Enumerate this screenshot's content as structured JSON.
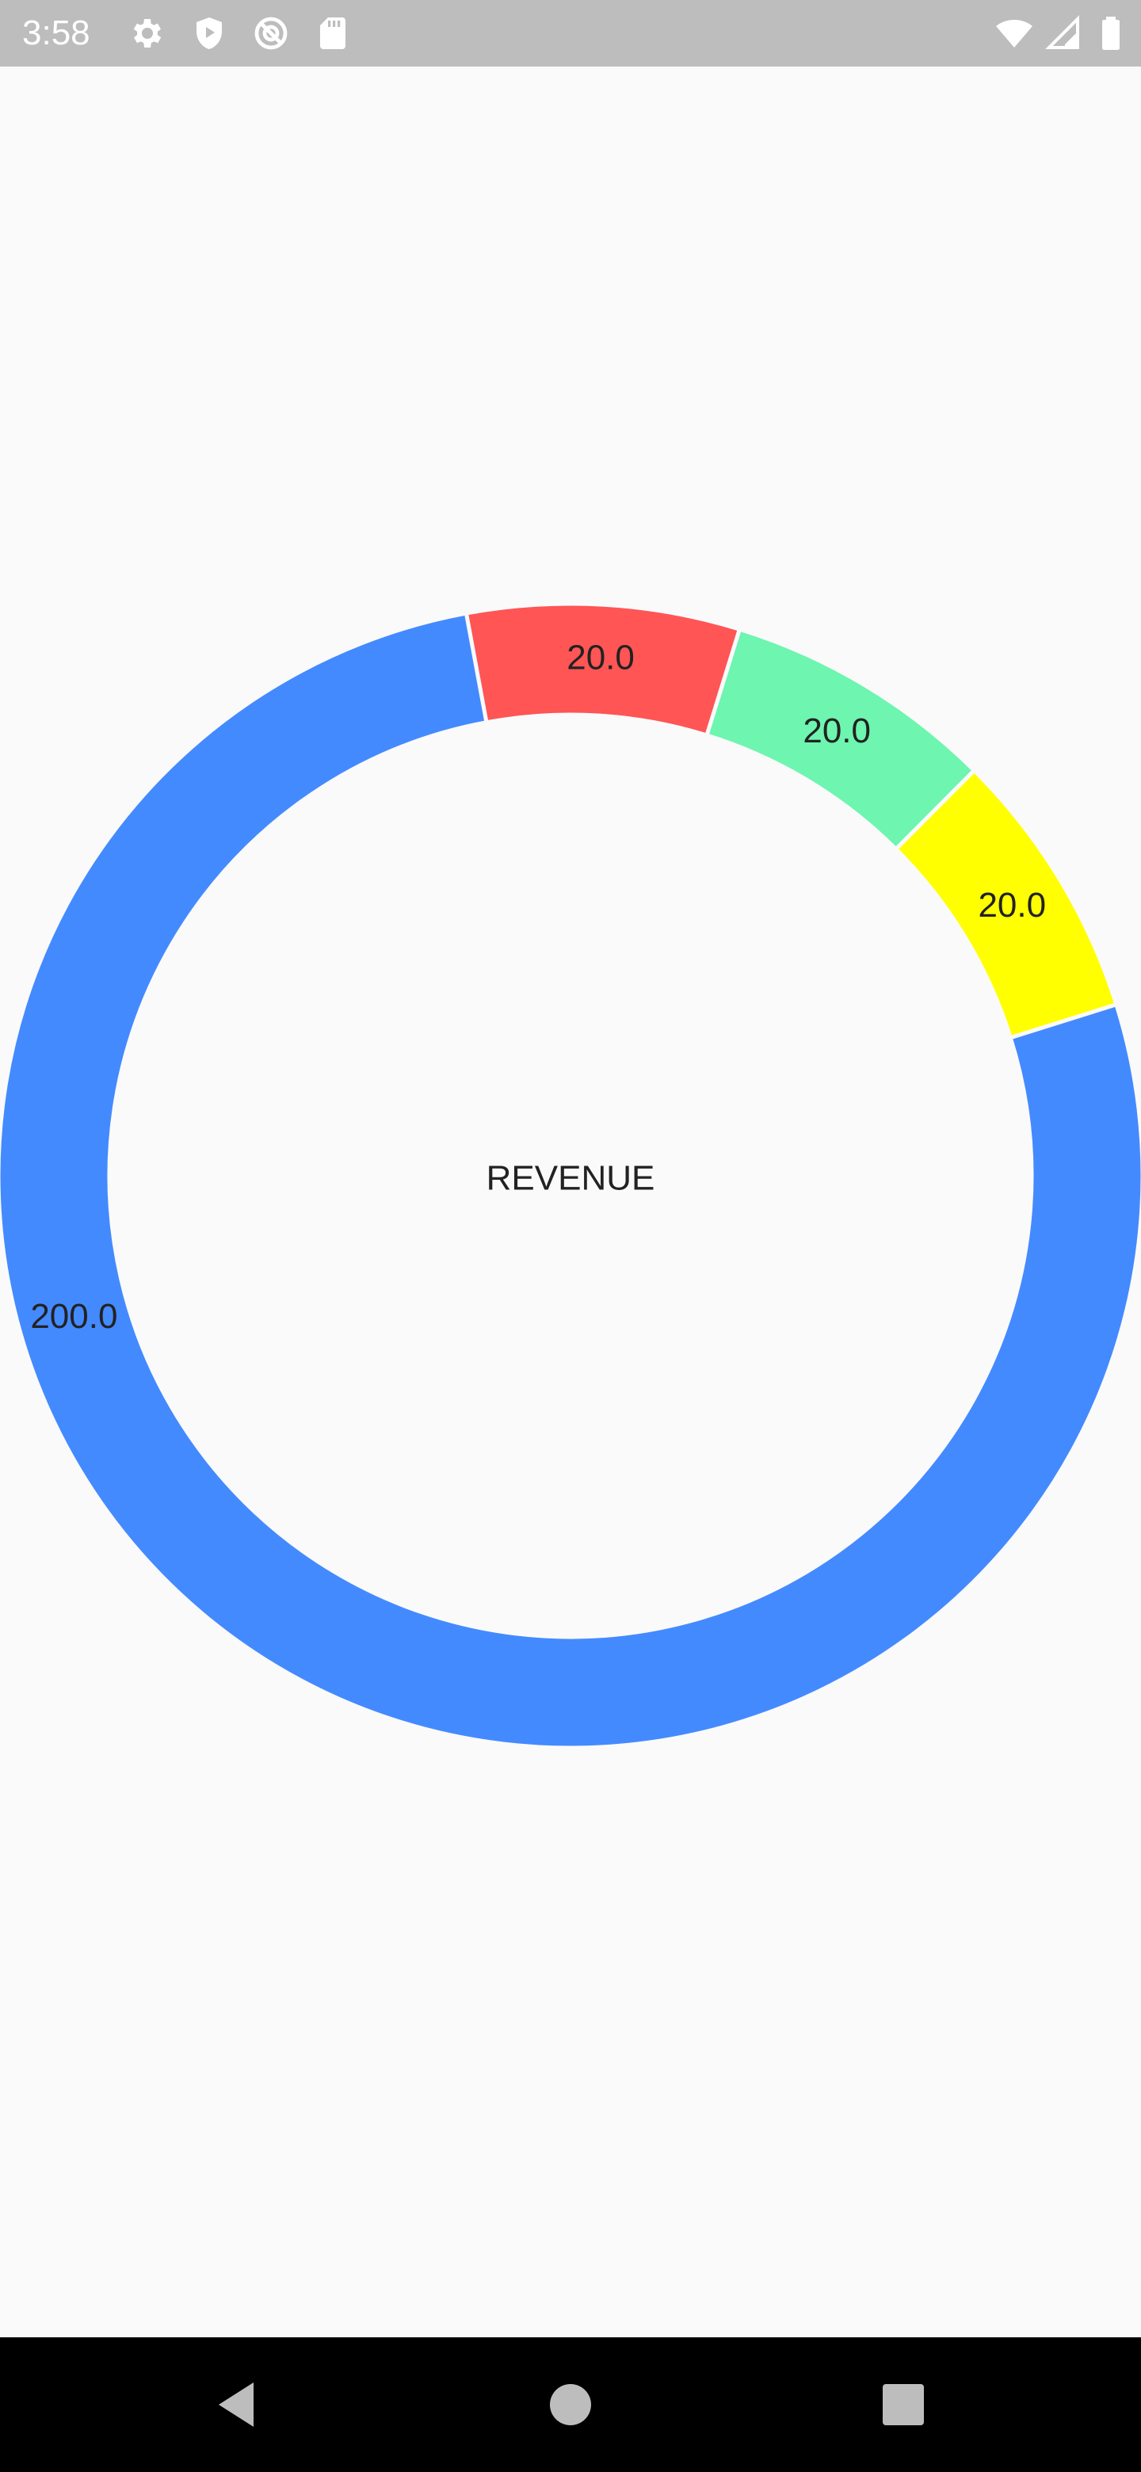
{
  "status_bar": {
    "time": "3:58",
    "icons_left": [
      "gear-icon",
      "shield-play-icon",
      "no-disturb-icon",
      "sd-card-icon"
    ],
    "icons_right": [
      "wifi-icon",
      "cell-signal-icon",
      "battery-icon"
    ]
  },
  "nav_bar": {
    "buttons": [
      "back-icon",
      "home-icon",
      "recents-icon"
    ]
  },
  "chart_data": {
    "type": "pie",
    "donut": true,
    "center_label": "REVENUE",
    "slices": [
      {
        "label": "20.0",
        "value": 20,
        "color": "#ff5555"
      },
      {
        "label": "20.0",
        "value": 20,
        "color": "#6ef5b0"
      },
      {
        "label": "20.0",
        "value": 20,
        "color": "#ffff00"
      },
      {
        "label": "200.0",
        "value": 200,
        "color": "#448aff"
      }
    ]
  }
}
